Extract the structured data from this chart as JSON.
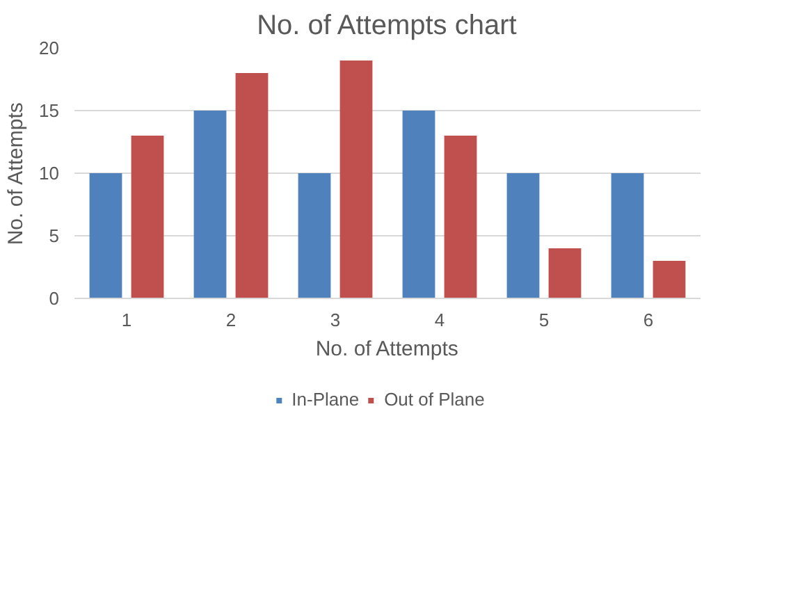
{
  "chart_data": {
    "type": "bar",
    "title": "No. of Attempts chart",
    "xlabel": "No. of Attempts",
    "ylabel": "No. of Attempts",
    "categories": [
      "1",
      "2",
      "3",
      "4",
      "5",
      "6"
    ],
    "series": [
      {
        "name": "In-Plane",
        "color": "#4f81bd",
        "values": [
          10,
          15,
          10,
          15,
          10,
          10
        ]
      },
      {
        "name": "Out of Plane",
        "color": "#c0504d",
        "values": [
          13,
          18,
          19,
          13,
          4,
          3
        ]
      }
    ],
    "ylim": [
      0,
      20
    ],
    "yticks": [
      0,
      5,
      10,
      15,
      20
    ],
    "grid": "y",
    "legend": "bottom"
  }
}
